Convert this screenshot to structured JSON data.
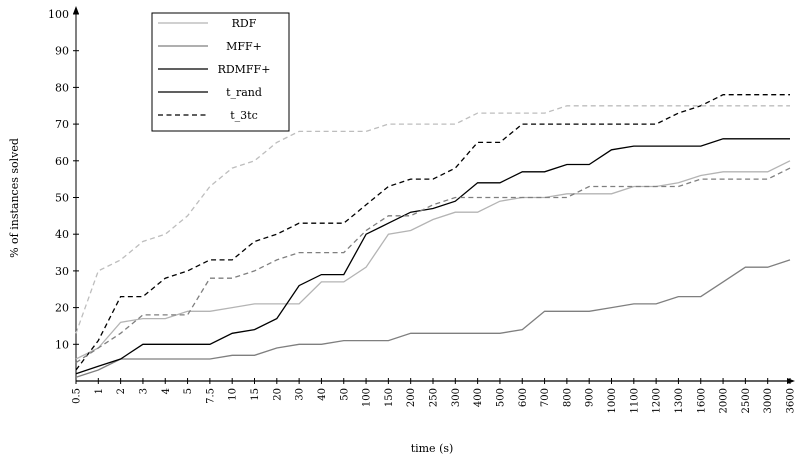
{
  "chart_data": {
    "type": "line",
    "xlabel": "time (s)",
    "ylabel": "% of instances solved",
    "ylim": [
      0,
      100
    ],
    "yticks": [
      10,
      20,
      30,
      40,
      50,
      60,
      70,
      80,
      90,
      100
    ],
    "categories": [
      "0.5",
      "1",
      "2",
      "3",
      "4",
      "5",
      "7.5",
      "10",
      "15",
      "20",
      "30",
      "40",
      "50",
      "100",
      "150",
      "200",
      "250",
      "300",
      "400",
      "500",
      "600",
      "700",
      "800",
      "900",
      "1000",
      "1100",
      "1200",
      "1300",
      "1600",
      "2000",
      "2500",
      "3000",
      "3600"
    ],
    "grid": false,
    "legend_position": "top-left",
    "series": [
      {
        "name": "RDF",
        "color": "#b4b4b4",
        "dash": "solid",
        "values": [
          6,
          9,
          16,
          17,
          17,
          19,
          19,
          20,
          21,
          21,
          21,
          27,
          27,
          31,
          40,
          41,
          44,
          46,
          46,
          49,
          50,
          50,
          51,
          51,
          51,
          53,
          53,
          54,
          56,
          57,
          57,
          57,
          60
        ]
      },
      {
        "name": "MFF+",
        "color": "#7f7f7f",
        "dash": "solid",
        "values": [
          1,
          3,
          6,
          6,
          6,
          6,
          6,
          7,
          7,
          9,
          10,
          10,
          11,
          11,
          11,
          13,
          13,
          13,
          13,
          13,
          14,
          19,
          19,
          19,
          20,
          21,
          21,
          23,
          23,
          27,
          31,
          31,
          33
        ]
      },
      {
        "name": "RDMFF+",
        "color": "#000000",
        "dash": "solid",
        "values": [
          2,
          4,
          6,
          10,
          10,
          10,
          10,
          13,
          14,
          17,
          26,
          29,
          29,
          40,
          43,
          46,
          47,
          49,
          54,
          54,
          57,
          57,
          59,
          59,
          63,
          64,
          64,
          64,
          64,
          66,
          66,
          66,
          66
        ]
      },
      {
        "name": "t_rand",
        "color": "#000000",
        "dash": "solid",
        "values": [
          0,
          0,
          0,
          0,
          0,
          0,
          0,
          0,
          0,
          0,
          0,
          0,
          0,
          0,
          0,
          0,
          0,
          0,
          0,
          0,
          0,
          0,
          0,
          0,
          0,
          0,
          0,
          0,
          0,
          0,
          0,
          0,
          0
        ]
      },
      {
        "name": "t_3tc",
        "color": "#000000",
        "dash": "dashed",
        "values": [
          3,
          11,
          23,
          23,
          28,
          30,
          33,
          33,
          38,
          40,
          43,
          43,
          43,
          48,
          53,
          55,
          55,
          58,
          65,
          65,
          70,
          70,
          70,
          70,
          70,
          70,
          70,
          73,
          75,
          78,
          78,
          78,
          78
        ]
      },
      {
        "name": "",
        "color": "#bdbdbd",
        "dash": "dashed",
        "values": [
          13,
          30,
          33,
          38,
          40,
          45,
          53,
          58,
          60,
          65,
          68,
          68,
          68,
          68,
          70,
          70,
          70,
          70,
          73,
          73,
          73,
          73,
          75,
          75,
          75,
          75,
          75,
          75,
          75,
          75,
          75,
          75,
          75
        ]
      },
      {
        "name": "",
        "color": "#7f7f7f",
        "dash": "dashed",
        "values": [
          5,
          9,
          13,
          18,
          18,
          18,
          28,
          28,
          30,
          33,
          35,
          35,
          35,
          41,
          45,
          45,
          48,
          50,
          50,
          50,
          50,
          50,
          50,
          53,
          53,
          53,
          53,
          53,
          55,
          55,
          55,
          55,
          58
        ]
      }
    ]
  }
}
